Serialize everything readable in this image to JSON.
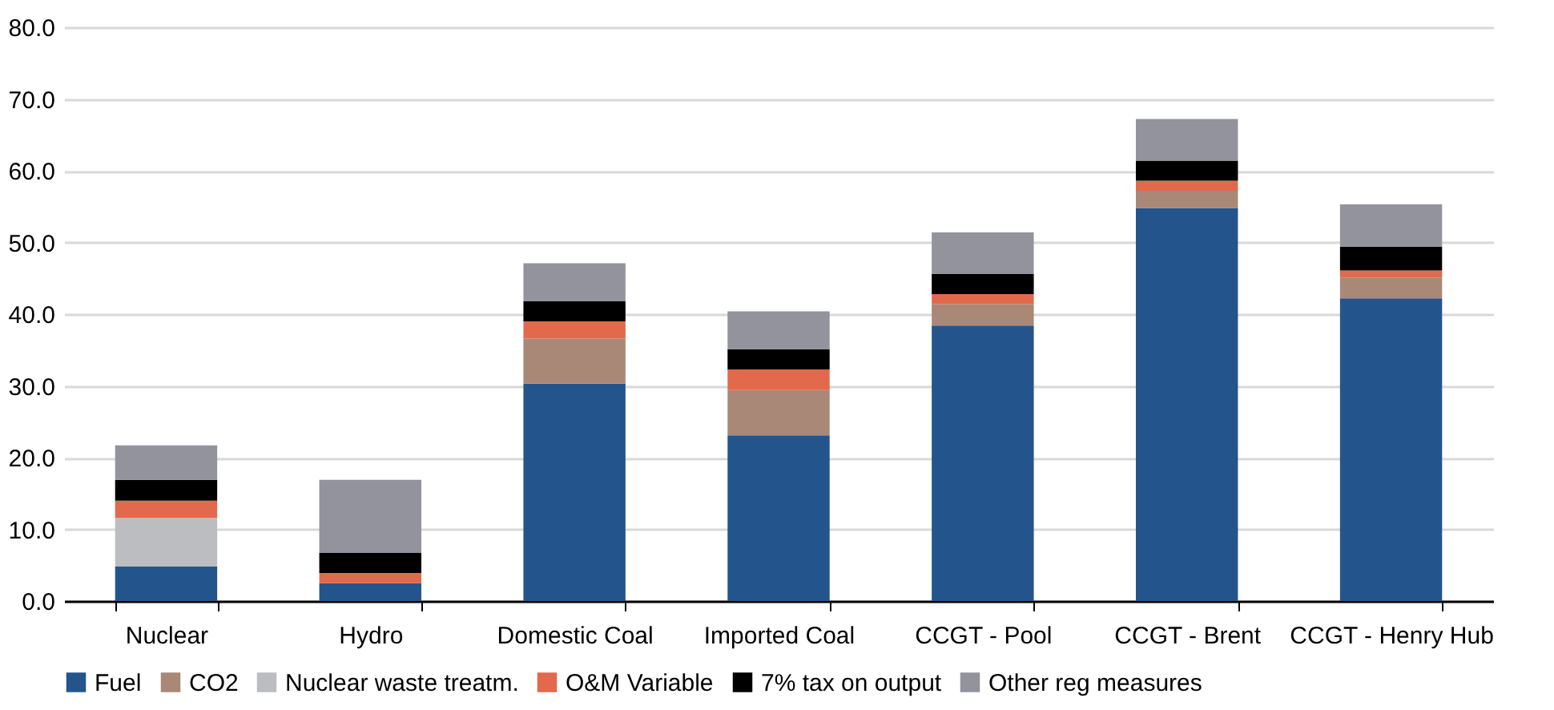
{
  "chart_data": {
    "type": "bar",
    "stacked": true,
    "categories": [
      "Nuclear",
      "Hydro",
      "Domestic Coal",
      "Imported Coal",
      "CCGT - Pool",
      "CCGT -  Brent",
      "CCGT - Henry Hub"
    ],
    "series": [
      {
        "name": "Fuel",
        "color": "#23558c",
        "values": [
          4.8,
          2.5,
          30.3,
          23.1,
          38.4,
          54.8,
          42.2
        ]
      },
      {
        "name": "CO2",
        "color": "#a98878",
        "values": [
          0,
          0,
          6.3,
          6.3,
          3.0,
          2.4,
          2.9
        ]
      },
      {
        "name": "Nuclear waste treatm.",
        "color": "#bcbdc1",
        "values": [
          6.8,
          0,
          0,
          0,
          0,
          0,
          0
        ]
      },
      {
        "name": "O&M Variable",
        "color": "#e2694b",
        "values": [
          2.4,
          1.4,
          2.4,
          2.9,
          1.4,
          1.4,
          1.0
        ]
      },
      {
        "name": "7% tax on output",
        "color": "#000000",
        "values": [
          2.9,
          2.8,
          2.8,
          2.8,
          2.8,
          2.8,
          3.3
        ]
      },
      {
        "name": "Other reg measures",
        "color": "#93939d",
        "values": [
          4.8,
          10.2,
          5.3,
          5.3,
          5.8,
          5.8,
          5.9
        ]
      }
    ],
    "ylim": [
      0,
      80
    ],
    "yticks": [
      {
        "value": 0,
        "label": "0.0"
      },
      {
        "value": 10,
        "label": "10.0"
      },
      {
        "value": 20,
        "label": "20.0"
      },
      {
        "value": 30,
        "label": "30.0"
      },
      {
        "value": 40,
        "label": "40.0"
      },
      {
        "value": 50,
        "label": "50.0"
      },
      {
        "value": 60,
        "label": "60.0"
      },
      {
        "value": 70,
        "label": "70.0"
      },
      {
        "value": 80,
        "label": "80.0"
      }
    ],
    "grid": "y",
    "legend": "bottom"
  }
}
